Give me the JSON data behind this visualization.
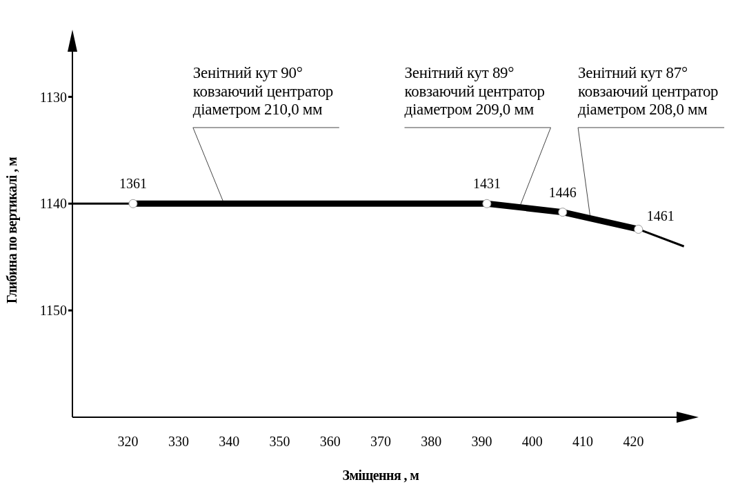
{
  "chart_data": {
    "type": "line",
    "xlabel": "Зміщення , м",
    "ylabel": "Глибина по вертикалі , м",
    "xlim": [
      309,
      431
    ],
    "ylim": [
      1160,
      1125
    ],
    "xticks": [
      320,
      330,
      340,
      350,
      360,
      370,
      380,
      390,
      400,
      410,
      420
    ],
    "yticks": [
      1130,
      1140,
      1150
    ],
    "grid": false,
    "series": [
      {
        "color": "#000000",
        "x": [
          309,
          321
        ],
        "values": [
          1140,
          1140
        ]
      },
      {
        "color": "#000000",
        "x": [
          321,
          391,
          406,
          421
        ],
        "values": [
          1140,
          1140,
          1140.8,
          1142.4
        ],
        "marker": "circle"
      },
      {
        "color": "#000000",
        "x": [
          421,
          430
        ],
        "values": [
          1142.4,
          1144
        ]
      }
    ],
    "annotations": [
      {
        "text": "1361",
        "x": 321,
        "y": 1140
      },
      {
        "text": "1431",
        "x": 391,
        "y": 1140
      },
      {
        "text": "1446",
        "x": 406,
        "y": 1140.8
      },
      {
        "text": "1461",
        "x": 421,
        "y": 1142.4
      },
      {
        "text": "Зенітний кут 90°\nковзаючий центратор\nдіаметром 210,0 мм",
        "x": 339,
        "y": 1140
      },
      {
        "text": "Зенітний кут 89°\nковзаючий центратор\nдіаметром 209,0 мм",
        "x": 397.5,
        "y": 1140.3
      },
      {
        "text": "Зенітний кут 87°\nковзаючий центратор\nдіаметром 208,0 мм",
        "x": 411.5,
        "y": 1141.4
      }
    ]
  }
}
